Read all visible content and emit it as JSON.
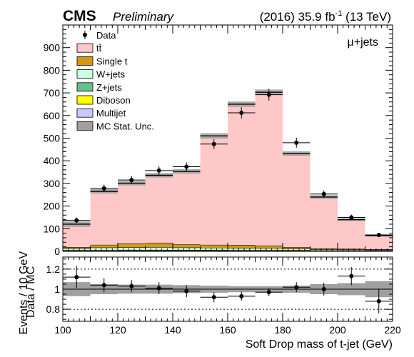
{
  "header": {
    "experiment": "CMS",
    "status": "Preliminary",
    "lumi": "(2016) 35.9 fb",
    "lumi_sup": "-1",
    "energy": " (13 TeV)"
  },
  "channel": "μ+jets",
  "chart_data": [
    {
      "type": "bar",
      "subtype": "stacked-histogram-with-data-points",
      "title": "",
      "xlabel": "Soft Drop mass of t-jet (GeV)",
      "ylabel": "Events / 10 GeV",
      "xlim": [
        100,
        220
      ],
      "ylim": [
        0,
        1000
      ],
      "bin_edges": [
        100,
        110,
        120,
        130,
        140,
        150,
        160,
        170,
        180,
        190,
        200,
        210,
        220
      ],
      "x_ticks": [
        100,
        120,
        140,
        160,
        180,
        200,
        220
      ],
      "y_ticks": [
        0,
        100,
        200,
        300,
        400,
        500,
        600,
        700,
        800,
        900
      ],
      "series": [
        {
          "name": "MC Stat. Unc.",
          "color": "#a0a0a0",
          "values": [
            12,
            10,
            10,
            10,
            10,
            12,
            12,
            12,
            10,
            8,
            6,
            5
          ]
        },
        {
          "name": "Multijet",
          "color": "#c8c8ff",
          "values": [
            2,
            2,
            2,
            2,
            2,
            2,
            2,
            2,
            2,
            1,
            1,
            1
          ]
        },
        {
          "name": "Diboson",
          "color": "#ffff00",
          "values": [
            1,
            1,
            1,
            1,
            1,
            1,
            1,
            1,
            1,
            1,
            1,
            1
          ]
        },
        {
          "name": "Z+jets",
          "color": "#66c08c",
          "values": [
            1,
            1,
            2,
            2,
            2,
            2,
            1,
            1,
            1,
            1,
            1,
            1
          ]
        },
        {
          "name": "W+jets",
          "color": "#ccffe0",
          "values": [
            8,
            12,
            12,
            13,
            11,
            10,
            10,
            9,
            7,
            5,
            4,
            3
          ]
        },
        {
          "name": "Single t",
          "color": "#d39a10",
          "values": [
            6,
            12,
            16,
            18,
            14,
            13,
            13,
            11,
            6,
            4,
            3,
            2
          ]
        },
        {
          "name": "tt̄",
          "color": "#ffc8c8",
          "values": [
            102,
            237,
            268,
            300,
            323,
            482,
            623,
            679,
            415,
            228,
            130,
            62
          ]
        },
        {
          "name": "Data",
          "color": "#000000",
          "values": [
            137,
            278,
            315,
            357,
            374,
            474,
            612,
            692,
            480,
            253,
            150,
            72
          ],
          "errors": [
            12,
            17,
            18,
            19,
            19,
            22,
            25,
            26,
            22,
            16,
            12,
            9
          ],
          "xerr": 5
        }
      ],
      "legend": {
        "position": "top-left"
      }
    },
    {
      "type": "scatter",
      "subtype": "ratio",
      "xlabel": "Soft Drop mass of t-jet (GeV)",
      "ylabel": "Data / MC",
      "xlim": [
        100,
        220
      ],
      "ylim": [
        0.68,
        1.32
      ],
      "y_ticks": [
        0.8,
        1,
        1.2
      ],
      "reference_lines": [
        0.8,
        1,
        1.2
      ],
      "x": [
        105,
        115,
        125,
        135,
        145,
        155,
        165,
        175,
        185,
        195,
        205,
        215
      ],
      "values": [
        1.12,
        1.04,
        1.03,
        1.01,
        0.98,
        0.92,
        0.93,
        0.97,
        1.02,
        1.0,
        1.13,
        0.88
      ],
      "errors": [
        0.11,
        0.07,
        0.06,
        0.06,
        0.06,
        0.05,
        0.045,
        0.04,
        0.05,
        0.065,
        0.09,
        0.12
      ],
      "band_halfwidth": [
        0.07,
        0.05,
        0.045,
        0.045,
        0.04,
        0.035,
        0.03,
        0.03,
        0.035,
        0.05,
        0.06,
        0.08
      ],
      "band_color": "#a0a0a0"
    }
  ]
}
